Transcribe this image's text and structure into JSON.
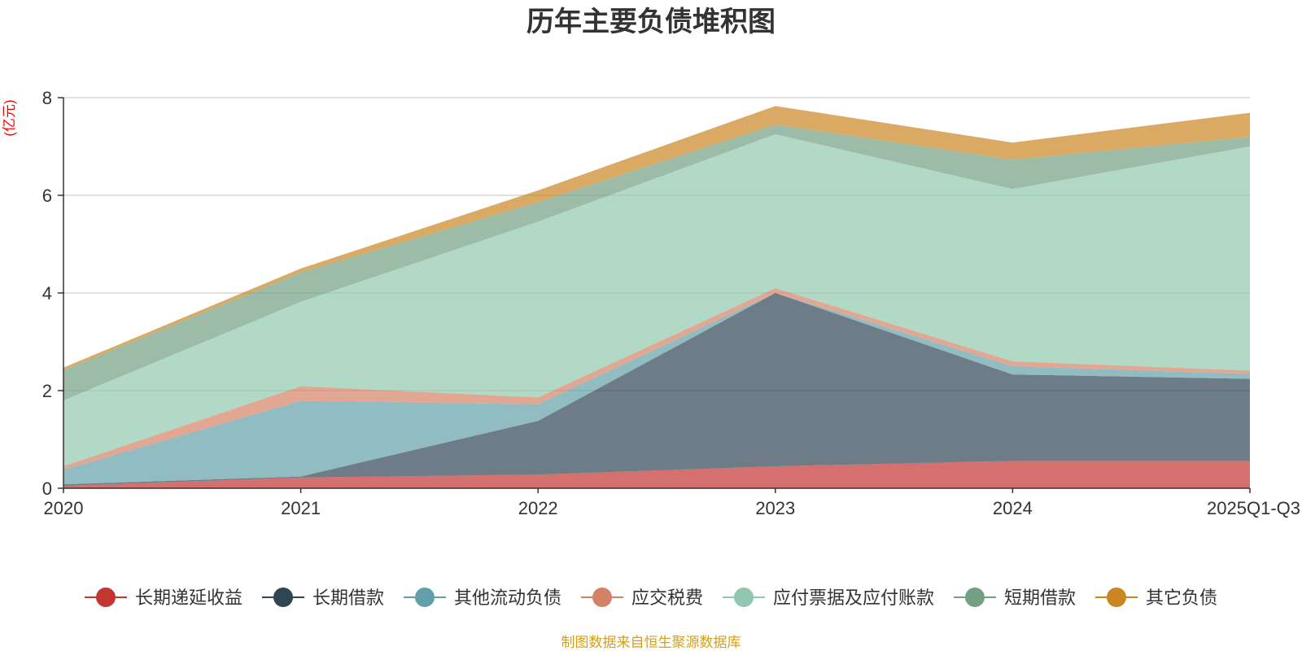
{
  "chart_data": {
    "type": "area",
    "stacked": true,
    "title": "历年主要负债堆积图",
    "ylabel": "(亿元)",
    "xlabel": "",
    "ylim": [
      0,
      8
    ],
    "yticks": [
      0,
      2,
      4,
      6,
      8
    ],
    "grid": true,
    "legend_position": "bottom",
    "categories": [
      "2020",
      "2021",
      "2022",
      "2023",
      "2024",
      "2025Q1-Q3"
    ],
    "series": [
      {
        "name": "长期递延收益",
        "color": "#c23531",
        "values": [
          0.05,
          0.22,
          0.28,
          0.45,
          0.56,
          0.56
        ]
      },
      {
        "name": "长期借款",
        "color": "#2f4554",
        "values": [
          0.03,
          0.02,
          1.1,
          3.55,
          1.77,
          1.68
        ]
      },
      {
        "name": "其他流动负债",
        "color": "#61a0a8",
        "values": [
          0.3,
          1.55,
          0.34,
          0.0,
          0.17,
          0.1
        ]
      },
      {
        "name": "应交税费",
        "color": "#d48265",
        "values": [
          0.07,
          0.3,
          0.14,
          0.1,
          0.1,
          0.07
        ]
      },
      {
        "name": "应付票据及应付账款",
        "color": "#91c7ae",
        "values": [
          1.35,
          1.73,
          3.6,
          3.15,
          3.53,
          4.59
        ]
      },
      {
        "name": "短期借款",
        "color": "#749f83",
        "values": [
          0.62,
          0.6,
          0.4,
          0.2,
          0.6,
          0.2
        ]
      },
      {
        "name": "其它负债",
        "color": "#ca8622",
        "values": [
          0.05,
          0.08,
          0.24,
          0.38,
          0.35,
          0.49
        ]
      }
    ]
  },
  "source_note": "制图数据来自恒生聚源数据库"
}
